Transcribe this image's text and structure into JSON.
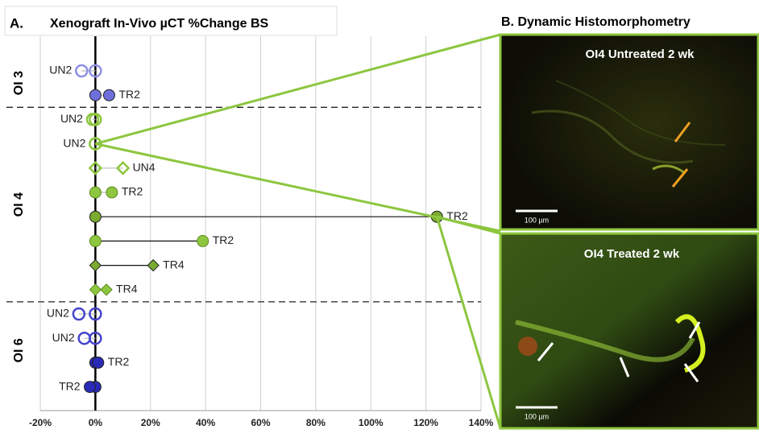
{
  "chart_data": {
    "type": "dumbbell",
    "panel_label": "A.",
    "title": "Xenograft In-Vivo µCT %Change BS",
    "xlim": [
      -20,
      140
    ],
    "xticks": [
      {
        "value": -20,
        "label": "-20%"
      },
      {
        "value": 0,
        "label": "0%"
      },
      {
        "value": 20,
        "label": "20%"
      },
      {
        "value": 40,
        "label": "40%"
      },
      {
        "value": 60,
        "label": "60%"
      },
      {
        "value": 80,
        "label": "80%"
      },
      {
        "value": 100,
        "label": "100%"
      },
      {
        "value": 120,
        "label": "120%"
      },
      {
        "value": 140,
        "label": "140%"
      }
    ],
    "grid": true,
    "groups": [
      {
        "name": "OI 3",
        "rows": [
          {
            "label": "UN2",
            "value": -5,
            "shape": "circle",
            "filled": false,
            "color": "#8f8fe6"
          },
          {
            "label": "TR2",
            "value": 5,
            "shape": "circle",
            "filled": true,
            "color": "#6f6fdc"
          }
        ]
      },
      {
        "name": "OI 4",
        "rows": [
          {
            "label": "UN2",
            "value": -1,
            "shape": "circle",
            "filled": false,
            "color": "#8dc63f"
          },
          {
            "label": "UN2",
            "value": 0,
            "shape": "circle",
            "filled": false,
            "color": "#8dc63f"
          },
          {
            "label": "UN4",
            "value": 10,
            "shape": "diamond",
            "filled": false,
            "color": "#8dc63f"
          },
          {
            "label": "TR2",
            "value": 6,
            "shape": "circle",
            "filled": true,
            "color": "#8dc63f"
          },
          {
            "label": "TR2",
            "value": 124,
            "shape": "circle",
            "filled": true,
            "color": "#7aaa2f"
          },
          {
            "label": "TR2",
            "value": 39,
            "shape": "circle",
            "filled": true,
            "color": "#8dc63f"
          },
          {
            "label": "TR4",
            "value": 21,
            "shape": "diamond",
            "filled": true,
            "color": "#7aaa2f"
          },
          {
            "label": "TR4",
            "value": 4,
            "shape": "diamond",
            "filled": true,
            "color": "#8dc63f"
          }
        ]
      },
      {
        "name": "OI 6",
        "rows": [
          {
            "label": "UN2",
            "value": -6,
            "shape": "circle",
            "filled": false,
            "color": "#4444cc"
          },
          {
            "label": "UN2",
            "value": -4,
            "shape": "circle",
            "filled": false,
            "color": "#4444cc"
          },
          {
            "label": "TR2",
            "value": 1,
            "shape": "circle",
            "filled": true,
            "color": "#2a2ab8"
          },
          {
            "label": "TR2",
            "value": -2,
            "shape": "circle",
            "filled": true,
            "color": "#2a2ab8"
          }
        ]
      }
    ]
  },
  "panel_b": {
    "title": "B. Dynamic Histomorphometry",
    "images": [
      {
        "caption": "OI4 Untreated 2 wk",
        "scale_bar": "100 µm"
      },
      {
        "caption": "OI4 Treated 2 wk",
        "scale_bar": "100 µm"
      }
    ]
  }
}
